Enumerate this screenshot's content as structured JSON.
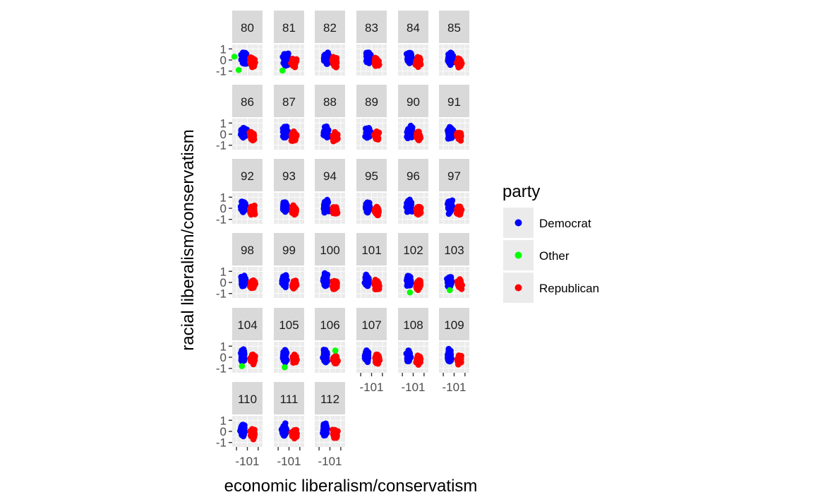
{
  "chart_data": {
    "type": "scatter",
    "facet_variable": "congress",
    "facets": [
      "80",
      "81",
      "82",
      "83",
      "84",
      "85",
      "86",
      "87",
      "88",
      "89",
      "90",
      "91",
      "92",
      "93",
      "94",
      "95",
      "96",
      "97",
      "98",
      "99",
      "100",
      "101",
      "102",
      "103",
      "104",
      "105",
      "106",
      "107",
      "108",
      "109",
      "110",
      "111",
      "112"
    ],
    "xlabel": "economic liberalism/conservatism",
    "ylabel": "racial liberalism/conservatism",
    "x_ticks": [
      "-1",
      "0",
      "1"
    ],
    "y_ticks": [
      "1",
      "0",
      "-1"
    ],
    "x_tick_label_text": "-101",
    "xlim": [
      -1.4,
      1.4
    ],
    "ylim": [
      -1.4,
      1.4
    ],
    "legend": {
      "title": "party",
      "position": "right",
      "entries": [
        {
          "name": "Democrat",
          "color": "#0000ff"
        },
        {
          "name": "Other",
          "color": "#00ff00"
        },
        {
          "name": "Republican",
          "color": "#ff0000"
        }
      ]
    },
    "series": [
      {
        "name": "Democrat",
        "color": "#0000ff",
        "x_center": -0.3,
        "y_center": 0.15,
        "x_spread": 0.35,
        "y_spread": 0.7
      },
      {
        "name": "Republican",
        "color": "#ff0000",
        "x_center": 0.45,
        "y_center": -0.2,
        "x_spread": 0.3,
        "y_spread": 0.55
      },
      {
        "name": "Other",
        "color": "#00ff00",
        "points_by_facet": {
          "80": [
            [
              -1.2,
              0.3
            ],
            [
              -0.8,
              -0.9
            ]
          ],
          "81": [
            [
              -0.6,
              -0.95
            ]
          ],
          "102": [
            [
              -0.3,
              -0.9
            ]
          ],
          "103": [
            [
              -0.4,
              -0.7
            ]
          ],
          "104": [
            [
              -0.5,
              -0.8
            ]
          ],
          "105": [
            [
              -0.4,
              -0.9
            ]
          ],
          "106": [
            [
              0.5,
              0.6
            ]
          ]
        }
      }
    ]
  }
}
